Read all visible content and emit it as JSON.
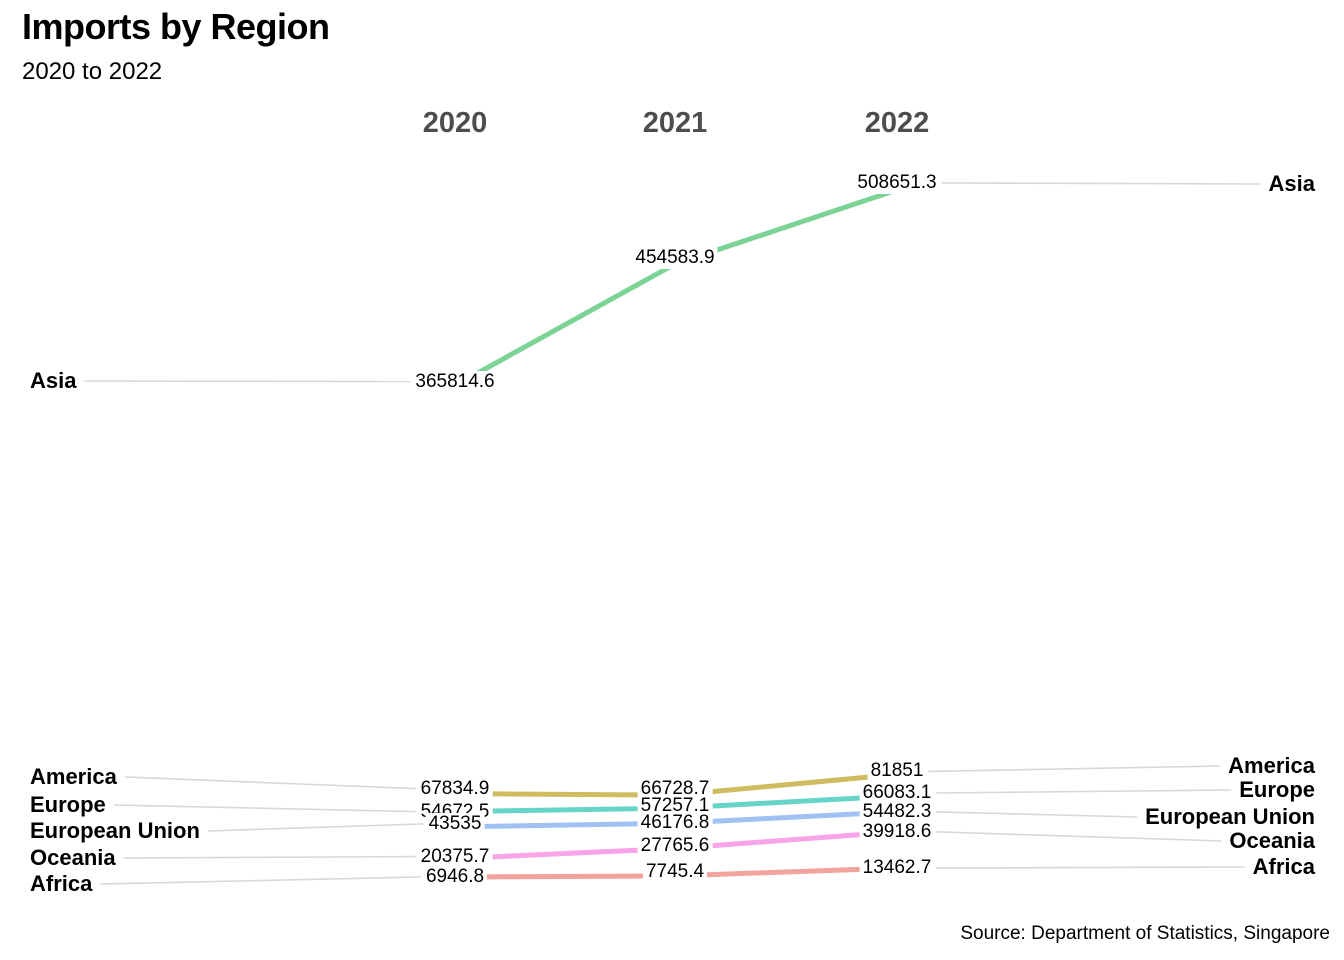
{
  "header": {
    "title": "Imports by Region",
    "subtitle": "2020 to 2022"
  },
  "source": "Source: Department of Statistics, Singapore",
  "chart_data": {
    "type": "line",
    "variant": "slope-chart-with-inline-labels",
    "title": "Imports by Region",
    "subtitle": "2020 to 2022",
    "x_labels": [
      "2020",
      "2021",
      "2022"
    ],
    "series": [
      {
        "name": "Asia",
        "color": "#7BD395",
        "values": [
          365814.6,
          454583.9,
          508651.3
        ]
      },
      {
        "name": "America",
        "color": "#CFBC60",
        "values": [
          67834.9,
          66728.7,
          81851
        ]
      },
      {
        "name": "Europe",
        "color": "#67D4C8",
        "values": [
          54672.5,
          57257.1,
          66083.1
        ]
      },
      {
        "name": "European Union",
        "color": "#9FC2F2",
        "values": [
          43535,
          46176.8,
          54482.3
        ]
      },
      {
        "name": "Oceania",
        "color": "#F8A4E8",
        "values": [
          20375.7,
          27765.6,
          39918.6
        ]
      },
      {
        "name": "Africa",
        "color": "#F3A39D",
        "values": [
          6946.8,
          7745.4,
          13462.7
        ]
      }
    ],
    "ylim": [
      0,
      650000
    ],
    "grid": false,
    "legend_position": "inline-left-and-right",
    "leader_line_color": "#D8D8D8",
    "axis_label_color": "#4D4D4D",
    "value_label_color": "#000000",
    "background": "#FFFFFF",
    "source": "Source: Department of Statistics, Singapore"
  }
}
